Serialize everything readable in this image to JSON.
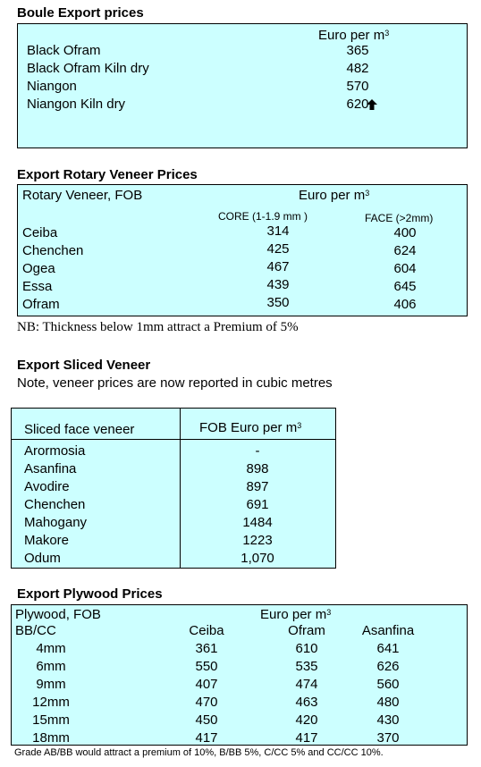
{
  "boule": {
    "title": "Boule Export prices",
    "unit_label": "Euro per m",
    "unit_sup": "3",
    "rows": [
      {
        "name": "Black Ofram",
        "price": "365"
      },
      {
        "name": "Black Ofram  Kiln dry",
        "price": "482"
      },
      {
        "name": "Niangon",
        "price": "570"
      },
      {
        "name": "Niangon Kiln dry",
        "price": "620"
      }
    ],
    "trend_icon": "up-arrow-icon"
  },
  "rotary": {
    "title": "Export Rotary Veneer Prices",
    "header_left": "Rotary Veneer,  FOB",
    "unit_label": "Euro  per m",
    "unit_sup": "3",
    "core_label": "CORE (1-1.9 mm )",
    "face_label": "FACE (>2mm)",
    "rows": [
      {
        "name": "Ceiba",
        "core": "314",
        "face": "400"
      },
      {
        "name": "Chenchen",
        "core": "425",
        "face": "624"
      },
      {
        "name": "Ogea",
        "core": "467",
        "face": "604"
      },
      {
        "name": "Essa",
        "core": "439",
        "face": "645"
      },
      {
        "name": "Ofram",
        "core": "350",
        "face": "406"
      }
    ],
    "note": "NB: Thickness below 1mm attract a Premium of 5%"
  },
  "sliced": {
    "title": "Export Sliced Veneer",
    "note": "Note, veneer prices are now reported in cubic metres",
    "col1": "Sliced face veneer",
    "col2": "FOB Euro per m",
    "col2_sup": "3",
    "rows": [
      {
        "name": "Arormosia",
        "price": "-"
      },
      {
        "name": "Asanfina",
        "price": "898"
      },
      {
        "name": "Avodire",
        "price": "897"
      },
      {
        "name": "Chenchen",
        "price": "691"
      },
      {
        "name": "Mahogany",
        "price": "1484"
      },
      {
        "name": "Makore",
        "price": "1223"
      },
      {
        "name": "Odum",
        "price": "1,070"
      }
    ]
  },
  "plywood": {
    "title": "Export Plywood Prices",
    "header_left": "Plywood, FOB",
    "unit_label": "Euro per m",
    "unit_sup": "3",
    "grade": "BB/CC",
    "columns": [
      "Ceiba",
      "Ofram",
      "Asanfina"
    ],
    "rows": [
      {
        "size": "4mm",
        "values": [
          "361",
          "610",
          "641"
        ]
      },
      {
        "size": "6mm",
        "values": [
          "550",
          "535",
          "626"
        ]
      },
      {
        "size": "9mm",
        "values": [
          "407",
          "474",
          "560"
        ]
      },
      {
        "size": "12mm",
        "values": [
          "470",
          "463",
          "480"
        ]
      },
      {
        "size": "15mm",
        "values": [
          "450",
          "420",
          "430"
        ]
      },
      {
        "size": "18mm",
        "values": [
          "417",
          "417",
          "370"
        ]
      }
    ],
    "footnote": "Grade AB/BB would attract a premium of 10%, B/BB 5%, C/CC 5% and CC/CC 10%."
  }
}
